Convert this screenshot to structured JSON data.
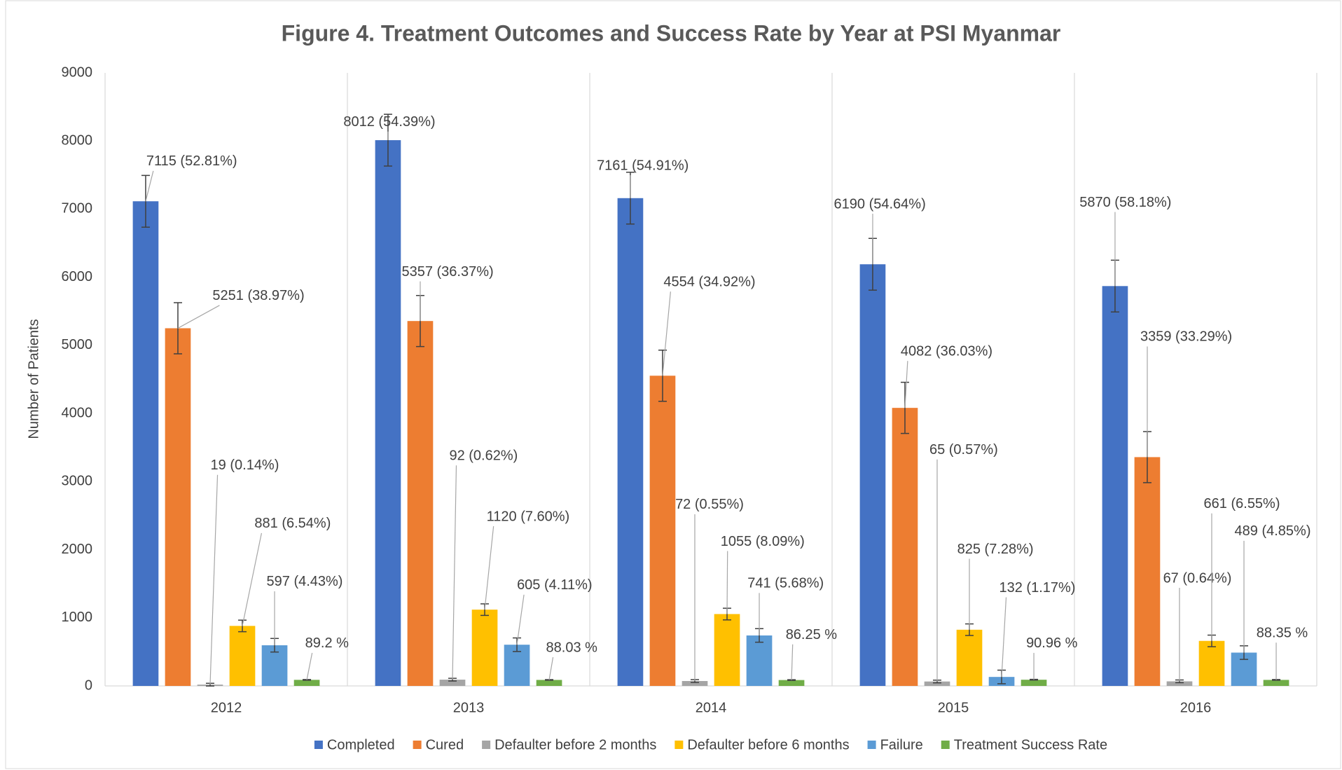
{
  "chart_data": {
    "type": "bar",
    "title": "Figure 4. Treatment Outcomes and Success Rate by Year at PSI Myanmar",
    "y_label": "Number of Patients",
    "categories": [
      "2012",
      "2013",
      "2014",
      "2015",
      "2016"
    ],
    "ylim": [
      0,
      9000
    ],
    "yticks": [
      0,
      1000,
      2000,
      3000,
      4000,
      5000,
      6000,
      7000,
      8000,
      9000
    ],
    "legend": "bottom",
    "series": [
      {
        "name": "Completed",
        "color": "#4472c4",
        "values": [
          7115,
          8012,
          7161,
          6190,
          5870
        ],
        "value_labels": [
          "7115 (52.81%)",
          "8012 (54.39%)",
          "7161 (54.91%)",
          "6190 (54.64%)",
          "5870 (58.18%)"
        ],
        "errors": [
          380,
          380,
          380,
          380,
          380
        ]
      },
      {
        "name": "Cured",
        "color": "#ed7d31",
        "values": [
          5251,
          5357,
          4554,
          4082,
          3359
        ],
        "value_labels": [
          "5251 (38.97%)",
          "5357 (36.37%)",
          "4554 (34.92%)",
          "4082 (36.03%)",
          "3359 (33.29%)"
        ],
        "errors": [
          375,
          375,
          375,
          375,
          375
        ]
      },
      {
        "name": "Defaulter before 2 months",
        "color": "#a5a5a5",
        "values": [
          19,
          92,
          72,
          65,
          67
        ],
        "value_labels": [
          "19 (0.14%)",
          "92 (0.62%)",
          "72 (0.55%)",
          "65 (0.57%)",
          "67 (0.64%)"
        ],
        "errors": [
          20,
          20,
          20,
          20,
          20
        ]
      },
      {
        "name": "Defaulter before 6 months",
        "color": "#ffc000",
        "values": [
          881,
          1120,
          1055,
          825,
          661
        ],
        "value_labels": [
          "881 (6.54%)",
          "1120 (7.60%)",
          "1055 (8.09%)",
          "825 (7.28%)",
          "661 (6.55%)"
        ],
        "errors": [
          85,
          85,
          85,
          85,
          85
        ]
      },
      {
        "name": "Failure",
        "color": "#5b9bd5",
        "values": [
          597,
          605,
          741,
          132,
          489
        ],
        "value_labels": [
          "597 (4.43%)",
          "605 (4.11%)",
          "741 (5.68%)",
          "132 (1.17%)",
          "489 (4.85%)"
        ],
        "errors": [
          100,
          100,
          100,
          100,
          100
        ]
      },
      {
        "name": "Treatment Success Rate",
        "color": "#70ad47",
        "values": [
          89.2,
          88.03,
          86.25,
          90.96,
          88.35
        ],
        "value_labels": [
          "89.2 %",
          "88.03 %",
          "86.25 %",
          "90.96 %",
          "88.35 %"
        ],
        "errors": [
          5,
          5,
          5,
          5,
          5
        ]
      }
    ]
  }
}
